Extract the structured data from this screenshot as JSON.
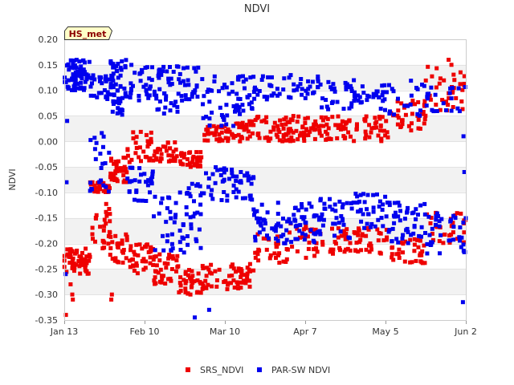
{
  "chart_data": {
    "type": "scatter",
    "title": "NDVI",
    "site_label": "HS_met",
    "xlabel": "",
    "ylabel": "NDVI",
    "ylim": [
      -0.35,
      0.2
    ],
    "xlim_days": [
      0,
      140
    ],
    "grid": true,
    "y_ticks": [
      0.2,
      0.15,
      0.1,
      0.05,
      0.0,
      -0.05,
      -0.1,
      -0.15,
      -0.2,
      -0.25,
      -0.3,
      -0.35
    ],
    "y_tick_labels": [
      "0.20",
      "0.15",
      "0.10",
      "0.05",
      "0.00",
      "-0.05",
      "-0.10",
      "-0.15",
      "-0.20",
      "-0.25",
      "-0.30",
      "-0.35"
    ],
    "x_ticks": [
      {
        "day": 0,
        "label": "Jan 13"
      },
      {
        "day": 28,
        "label": "Feb 10"
      },
      {
        "day": 56,
        "label": "Mar 10"
      },
      {
        "day": 84,
        "label": "Apr 7"
      },
      {
        "day": 112,
        "label": "May 5"
      },
      {
        "day": 140,
        "label": "Jun 2"
      }
    ],
    "legend_position": "bottom-center",
    "series": [
      {
        "name": "SRS_NDVI",
        "color": "#ee0000",
        "clusters": [
          {
            "day_start": 0,
            "day_end": 9,
            "low": -0.26,
            "high": -0.21,
            "high_share": 0.0,
            "hi_low": 0,
            "hi_high": 0,
            "n": 60,
            "outliers": [
              [
                0.6,
                -0.34
              ],
              [
                2.8,
                -0.3
              ],
              [
                3.0,
                -0.31
              ],
              [
                2.2,
                -0.28
              ]
            ]
          },
          {
            "day_start": 9,
            "day_end": 16,
            "low": -0.23,
            "high": -0.12,
            "high_share": 0.5,
            "hi_low": -0.1,
            "hi_high": -0.08,
            "n": 55,
            "outliers": [
              [
                16.4,
                -0.31
              ],
              [
                16.6,
                -0.3
              ]
            ]
          },
          {
            "day_start": 16,
            "day_end": 22,
            "low": -0.24,
            "high": -0.18,
            "high_share": 0.55,
            "hi_low": -0.08,
            "hi_high": -0.03,
            "n": 60,
            "outliers": []
          },
          {
            "day_start": 22,
            "day_end": 31,
            "low": -0.26,
            "high": -0.2,
            "high_share": 0.45,
            "hi_low": -0.05,
            "hi_high": 0.02,
            "n": 65,
            "outliers": []
          },
          {
            "day_start": 31,
            "day_end": 40,
            "low": -0.28,
            "high": -0.22,
            "high_share": 0.5,
            "hi_low": -0.04,
            "hi_high": 0.0,
            "n": 70,
            "outliers": []
          },
          {
            "day_start": 40,
            "day_end": 48,
            "low": -0.3,
            "high": -0.25,
            "high_share": 0.5,
            "hi_low": -0.05,
            "hi_high": -0.02,
            "n": 70,
            "outliers": [
              [
                44,
                -0.3
              ]
            ]
          },
          {
            "day_start": 48,
            "day_end": 59,
            "low": -0.29,
            "high": -0.24,
            "high_share": 0.5,
            "hi_low": 0.0,
            "hi_high": 0.03,
            "n": 70,
            "outliers": []
          },
          {
            "day_start": 59,
            "day_end": 66,
            "low": -0.29,
            "high": -0.24,
            "high_share": 0.45,
            "hi_low": 0.0,
            "hi_high": 0.04,
            "n": 60,
            "outliers": []
          },
          {
            "day_start": 66,
            "day_end": 78,
            "low": -0.24,
            "high": -0.18,
            "high_share": 0.6,
            "hi_low": 0.0,
            "hi_high": 0.05,
            "n": 70,
            "outliers": []
          },
          {
            "day_start": 78,
            "day_end": 89,
            "low": -0.23,
            "high": -0.16,
            "high_share": 0.6,
            "hi_low": 0.0,
            "hi_high": 0.05,
            "n": 70,
            "outliers": []
          },
          {
            "day_start": 89,
            "day_end": 101,
            "low": -0.22,
            "high": -0.17,
            "high_share": 0.6,
            "hi_low": 0.0,
            "hi_high": 0.05,
            "n": 70,
            "outliers": []
          },
          {
            "day_start": 101,
            "day_end": 113,
            "low": -0.22,
            "high": -0.17,
            "high_share": 0.6,
            "hi_low": 0.0,
            "hi_high": 0.05,
            "n": 70,
            "outliers": []
          },
          {
            "day_start": 113,
            "day_end": 126,
            "low": -0.24,
            "high": -0.19,
            "high_share": 0.6,
            "hi_low": 0.02,
            "hi_high": 0.08,
            "n": 70,
            "outliers": []
          },
          {
            "day_start": 126,
            "day_end": 140,
            "low": -0.2,
            "high": -0.14,
            "high_share": 0.65,
            "hi_low": 0.06,
            "hi_high": 0.15,
            "n": 65,
            "outliers": [
              [
                134,
                0.16
              ],
              [
                135,
                0.15
              ]
            ]
          }
        ]
      },
      {
        "name": "PAR-SW NDVI",
        "color": "#0000ee",
        "clusters": [
          {
            "day_start": 0,
            "day_end": 9,
            "low": 0.1,
            "high": 0.16,
            "high_share": 0.0,
            "hi_low": 0,
            "hi_high": 0,
            "n": 70,
            "outliers": [
              [
                0.5,
                -0.26
              ],
              [
                1.0,
                0.04
              ],
              [
                0.8,
                -0.08
              ]
            ]
          },
          {
            "day_start": 9,
            "day_end": 16,
            "low": -0.1,
            "high": 0.02,
            "high_share": 0.45,
            "hi_low": 0.08,
            "hi_high": 0.13,
            "n": 50,
            "outliers": []
          },
          {
            "day_start": 16,
            "day_end": 22,
            "low": 0.08,
            "high": 0.16,
            "high_share": 0.3,
            "hi_low": 0.05,
            "hi_high": 0.08,
            "n": 55,
            "outliers": []
          },
          {
            "day_start": 22,
            "day_end": 31,
            "low": -0.12,
            "high": -0.05,
            "high_share": 0.5,
            "hi_low": 0.08,
            "hi_high": 0.15,
            "n": 60,
            "outliers": []
          },
          {
            "day_start": 31,
            "day_end": 40,
            "low": 0.05,
            "high": 0.15,
            "high_share": 0.45,
            "hi_low": -0.22,
            "hi_high": -0.1,
            "n": 65,
            "outliers": []
          },
          {
            "day_start": 40,
            "day_end": 48,
            "low": 0.08,
            "high": 0.15,
            "high_share": 0.45,
            "hi_low": -0.22,
            "hi_high": -0.08,
            "n": 60,
            "outliers": [
              [
                45.5,
                -0.345
              ],
              [
                50.5,
                -0.33
              ]
            ]
          },
          {
            "day_start": 48,
            "day_end": 59,
            "low": -0.12,
            "high": -0.05,
            "high_share": 0.5,
            "hi_low": 0.03,
            "hi_high": 0.13,
            "n": 60,
            "outliers": []
          },
          {
            "day_start": 59,
            "day_end": 66,
            "low": -0.12,
            "high": -0.06,
            "high_share": 0.5,
            "hi_low": 0.05,
            "hi_high": 0.13,
            "n": 55,
            "outliers": []
          },
          {
            "day_start": 66,
            "day_end": 78,
            "low": -0.2,
            "high": -0.12,
            "high_share": 0.4,
            "hi_low": 0.08,
            "hi_high": 0.13,
            "n": 65,
            "outliers": []
          },
          {
            "day_start": 78,
            "day_end": 89,
            "low": -0.2,
            "high": -0.12,
            "high_share": 0.4,
            "hi_low": 0.08,
            "hi_high": 0.13,
            "n": 65,
            "outliers": []
          },
          {
            "day_start": 89,
            "day_end": 101,
            "low": -0.19,
            "high": -0.11,
            "high_share": 0.4,
            "hi_low": 0.06,
            "hi_high": 0.12,
            "n": 65,
            "outliers": []
          },
          {
            "day_start": 101,
            "day_end": 113,
            "low": -0.17,
            "high": -0.1,
            "high_share": 0.4,
            "hi_low": 0.06,
            "hi_high": 0.11,
            "n": 65,
            "outliers": []
          },
          {
            "day_start": 113,
            "day_end": 126,
            "low": -0.2,
            "high": -0.12,
            "high_share": 0.35,
            "hi_low": 0.05,
            "hi_high": 0.12,
            "n": 65,
            "outliers": []
          },
          {
            "day_start": 126,
            "day_end": 140,
            "low": -0.22,
            "high": -0.14,
            "high_share": 0.4,
            "hi_low": 0.05,
            "hi_high": 0.11,
            "n": 60,
            "outliers": [
              [
                139,
                -0.315
              ],
              [
                139.5,
                -0.06
              ],
              [
                139.2,
                0.01
              ]
            ]
          }
        ]
      }
    ]
  }
}
